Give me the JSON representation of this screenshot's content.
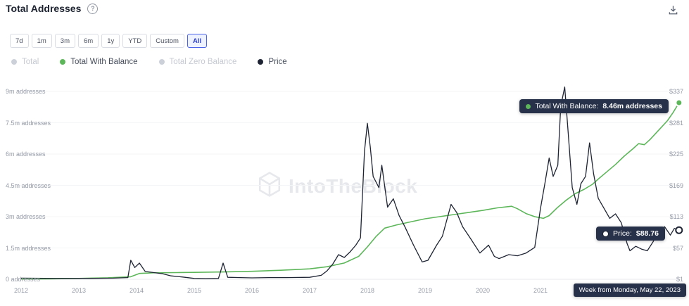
{
  "header": {
    "title": "Total Addresses"
  },
  "icons": {
    "help_glyph": "?",
    "help": "question-circle-icon",
    "download": "download-tray-icon"
  },
  "toolbar": {
    "ranges": [
      "7d",
      "1m",
      "3m",
      "6m",
      "1y",
      "YTD",
      "Custom",
      "All"
    ],
    "selected": "All"
  },
  "legend": {
    "items": [
      {
        "label": "Total",
        "color": "#ccd0d8",
        "muted": true
      },
      {
        "label": "Total With Balance",
        "color": "#5db75a",
        "muted": false
      },
      {
        "label": "Total Zero Balance",
        "color": "#ccd0d8",
        "muted": true
      },
      {
        "label": "Price",
        "color": "#1e2433",
        "muted": false
      }
    ]
  },
  "watermark": {
    "text": "IntoTheBlock"
  },
  "tooltips": {
    "balance": {
      "label": "Total With Balance:",
      "value": "8.46m addresses"
    },
    "price": {
      "label": "Price:",
      "value": "$88.76"
    },
    "date": "Week from Monday, May 22, 2023"
  },
  "colors": {
    "accent": "#4a63e8",
    "green": "#5db75a",
    "price": "#1e2433",
    "tooltip_bg": "#273149",
    "axis_text": "#959ba7",
    "grid": "#f4f5f7",
    "baseline": "#e8eaee"
  },
  "chart_data": {
    "type": "line",
    "title": "Total Addresses",
    "x_range": [
      2012,
      2023.42
    ],
    "x_ticks": [
      "2012",
      "2013",
      "2014",
      "2015",
      "2016",
      "2017",
      "2018",
      "2019",
      "2020",
      "2021"
    ],
    "y_left": {
      "unit": "addresses",
      "min": 0,
      "max": 9000000,
      "labels": [
        "9m addresses",
        "7.5m addresses",
        "6m addresses",
        "4.5m addresses",
        "3m addresses",
        "1.5m addresses",
        "0 addresses"
      ]
    },
    "y_right": {
      "unit": "USD",
      "min": 1,
      "max": 337,
      "labels": [
        "$337",
        "$281",
        "$225",
        "$169",
        "$113",
        "$57",
        "$1"
      ]
    },
    "grid": "horizontal-faint",
    "legend_position": "top-left",
    "series": [
      {
        "name": "Total With Balance",
        "axis": "left",
        "unit": "millions of addresses",
        "color": "#5db75a",
        "last_label": "8.46m addresses",
        "points": [
          [
            2012,
            0.01
          ],
          [
            2012.5,
            0.02
          ],
          [
            2013,
            0.04
          ],
          [
            2013.5,
            0.07
          ],
          [
            2013.9,
            0.12
          ],
          [
            2014.05,
            0.28
          ],
          [
            2014.3,
            0.31
          ],
          [
            2014.7,
            0.32
          ],
          [
            2015,
            0.33
          ],
          [
            2015.5,
            0.35
          ],
          [
            2016,
            0.38
          ],
          [
            2016.5,
            0.43
          ],
          [
            2017,
            0.5
          ],
          [
            2017.3,
            0.6
          ],
          [
            2017.6,
            0.78
          ],
          [
            2017.85,
            1.1
          ],
          [
            2018,
            1.55
          ],
          [
            2018.15,
            2.05
          ],
          [
            2018.3,
            2.45
          ],
          [
            2018.5,
            2.6
          ],
          [
            2018.75,
            2.75
          ],
          [
            2019,
            2.9
          ],
          [
            2019.25,
            3.0
          ],
          [
            2019.5,
            3.1
          ],
          [
            2019.75,
            3.2
          ],
          [
            2020,
            3.3
          ],
          [
            2020.25,
            3.42
          ],
          [
            2020.5,
            3.5
          ],
          [
            2020.6,
            3.38
          ],
          [
            2020.75,
            3.15
          ],
          [
            2020.9,
            3.0
          ],
          [
            2021.05,
            2.92
          ],
          [
            2021.15,
            3.05
          ],
          [
            2021.3,
            3.45
          ],
          [
            2021.45,
            3.8
          ],
          [
            2021.6,
            4.1
          ],
          [
            2021.75,
            4.3
          ],
          [
            2021.9,
            4.55
          ],
          [
            2022,
            4.8
          ],
          [
            2022.15,
            5.15
          ],
          [
            2022.3,
            5.5
          ],
          [
            2022.45,
            5.9
          ],
          [
            2022.6,
            6.25
          ],
          [
            2022.7,
            6.5
          ],
          [
            2022.8,
            6.45
          ],
          [
            2022.9,
            6.7
          ],
          [
            2023,
            7.0
          ],
          [
            2023.1,
            7.3
          ],
          [
            2023.2,
            7.6
          ],
          [
            2023.3,
            8.0
          ],
          [
            2023.4,
            8.46
          ]
        ]
      },
      {
        "name": "Price",
        "axis": "right",
        "unit": "USD",
        "color": "#1e2433",
        "last_label": "$88.76",
        "points": [
          [
            2012,
            3
          ],
          [
            2012.6,
            2.5
          ],
          [
            2013.2,
            2.5
          ],
          [
            2013.6,
            3
          ],
          [
            2013.85,
            4
          ],
          [
            2013.9,
            35
          ],
          [
            2013.97,
            22
          ],
          [
            2014.05,
            30
          ],
          [
            2014.15,
            15
          ],
          [
            2014.3,
            13
          ],
          [
            2014.45,
            11
          ],
          [
            2014.6,
            7
          ],
          [
            2014.8,
            5
          ],
          [
            2015,
            2.5
          ],
          [
            2015.2,
            2
          ],
          [
            2015.42,
            2.5
          ],
          [
            2015.5,
            30
          ],
          [
            2015.58,
            4.5
          ],
          [
            2015.8,
            4
          ],
          [
            2016,
            3.5
          ],
          [
            2016.3,
            4
          ],
          [
            2016.6,
            4
          ],
          [
            2017,
            4.5
          ],
          [
            2017.2,
            8
          ],
          [
            2017.3,
            16
          ],
          [
            2017.4,
            28
          ],
          [
            2017.5,
            45
          ],
          [
            2017.6,
            40
          ],
          [
            2017.7,
            50
          ],
          [
            2017.8,
            62
          ],
          [
            2017.88,
            75
          ],
          [
            2017.95,
            230
          ],
          [
            2018,
            280
          ],
          [
            2018.05,
            238
          ],
          [
            2018.1,
            185
          ],
          [
            2018.2,
            165
          ],
          [
            2018.25,
            205
          ],
          [
            2018.35,
            130
          ],
          [
            2018.45,
            145
          ],
          [
            2018.55,
            115
          ],
          [
            2018.65,
            95
          ],
          [
            2018.8,
            62
          ],
          [
            2018.95,
            32
          ],
          [
            2019.05,
            35
          ],
          [
            2019.2,
            62
          ],
          [
            2019.3,
            78
          ],
          [
            2019.45,
            135
          ],
          [
            2019.55,
            120
          ],
          [
            2019.65,
            95
          ],
          [
            2019.8,
            72
          ],
          [
            2019.95,
            48
          ],
          [
            2020.1,
            62
          ],
          [
            2020.2,
            42
          ],
          [
            2020.28,
            38
          ],
          [
            2020.45,
            45
          ],
          [
            2020.6,
            43
          ],
          [
            2020.75,
            48
          ],
          [
            2020.9,
            58
          ],
          [
            2021,
            128
          ],
          [
            2021.08,
            175
          ],
          [
            2021.15,
            218
          ],
          [
            2021.22,
            185
          ],
          [
            2021.3,
            205
          ],
          [
            2021.35,
            310
          ],
          [
            2021.42,
            345
          ],
          [
            2021.48,
            262
          ],
          [
            2021.55,
            165
          ],
          [
            2021.63,
            135
          ],
          [
            2021.7,
            172
          ],
          [
            2021.78,
            185
          ],
          [
            2021.85,
            245
          ],
          [
            2021.92,
            190
          ],
          [
            2022,
            146
          ],
          [
            2022.1,
            128
          ],
          [
            2022.2,
            110
          ],
          [
            2022.3,
            118
          ],
          [
            2022.4,
            102
          ],
          [
            2022.5,
            65
          ],
          [
            2022.55,
            52
          ],
          [
            2022.65,
            60
          ],
          [
            2022.75,
            55
          ],
          [
            2022.85,
            52
          ],
          [
            2022.95,
            68
          ],
          [
            2023.05,
            88
          ],
          [
            2023.15,
            95
          ],
          [
            2023.25,
            80
          ],
          [
            2023.32,
            92
          ],
          [
            2023.4,
            88.76
          ]
        ]
      }
    ]
  }
}
